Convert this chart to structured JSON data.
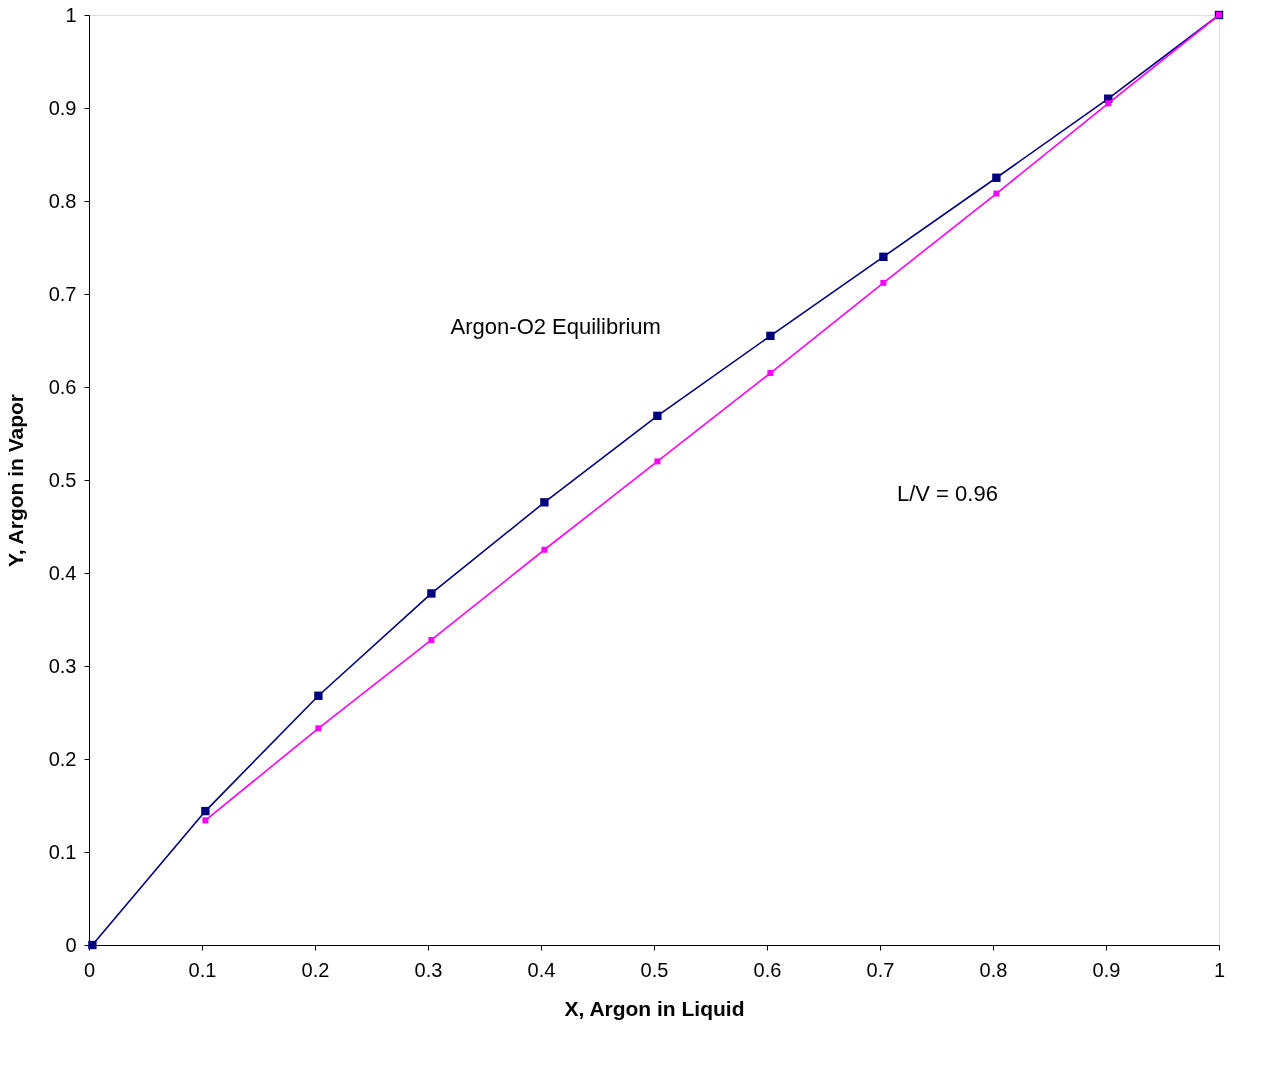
{
  "chart_data": {
    "type": "line",
    "xlabel": "X, Argon in Liquid",
    "ylabel": "Y, Argon in Vapor",
    "annotations": [
      "Argon-O2 Equilibrium",
      "L/V = 0.96"
    ],
    "xlim": [
      0,
      1
    ],
    "xticks": [
      0,
      0.1,
      0.2,
      0.3,
      0.4,
      0.5,
      0.6,
      0.7,
      0.8,
      0.9,
      1
    ],
    "ylim": [
      0,
      1
    ],
    "yticks": [
      0,
      0.1,
      0.2,
      0.3,
      0.4,
      0.5,
      0.6,
      0.7,
      0.8,
      0.9,
      1
    ],
    "grid": false,
    "legend": false,
    "marker": "square",
    "line_style": "solid",
    "series": [
      {
        "color": "#000080",
        "x": [
          0.003,
          0.103,
          0.203,
          0.303,
          0.403,
          0.503,
          0.603,
          0.703,
          0.803,
          0.902,
          1
        ],
        "values": [
          0,
          0.144,
          0.268,
          0.378,
          0.476,
          0.569,
          0.655,
          0.74,
          0.825,
          0.91,
          1
        ]
      },
      {
        "color": "#ff00ff",
        "x": [
          0.103,
          0.203,
          0.303,
          0.403,
          0.503,
          0.603,
          0.703,
          0.803,
          0.902,
          1
        ],
        "values": [
          0.134,
          0.233,
          0.328,
          0.425,
          0.52,
          0.615,
          0.712,
          0.808,
          0.905,
          1
        ]
      }
    ]
  }
}
